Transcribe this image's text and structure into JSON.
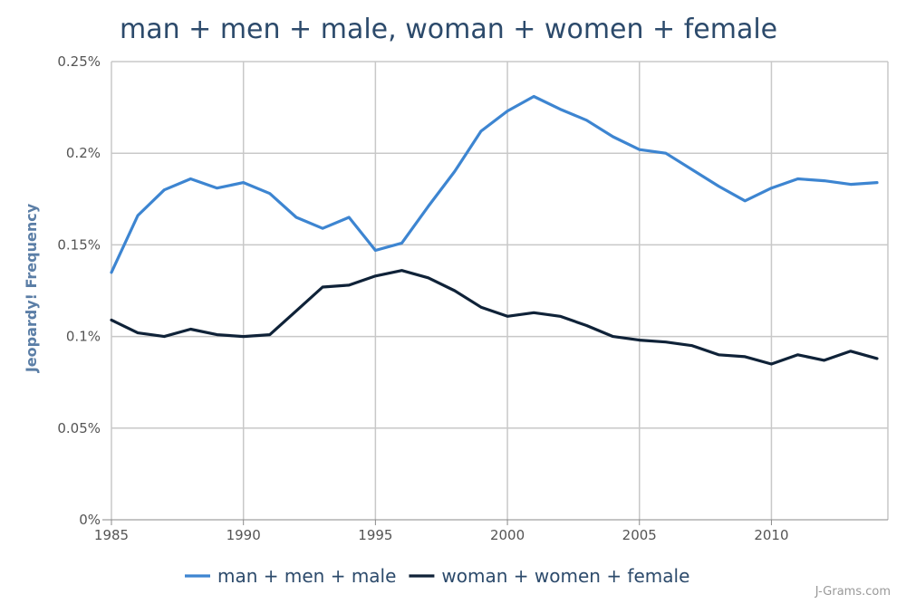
{
  "chart_data": {
    "type": "line",
    "title": "man + men + male, woman + women + female",
    "ylabel": "Jeopardy! Frequency",
    "xlabel": "",
    "xlim": [
      1985,
      2014
    ],
    "ylim": [
      0,
      0.25
    ],
    "grid": true,
    "legend_position": "bottom",
    "x_ticks": [
      1985,
      1990,
      1995,
      2000,
      2005,
      2010
    ],
    "x_tick_labels": [
      "1985",
      "1990",
      "1995",
      "2000",
      "2005",
      "2010"
    ],
    "y_ticks": [
      0,
      0.05,
      0.1,
      0.15,
      0.2,
      0.25
    ],
    "y_tick_labels": [
      "0%",
      "0.05%",
      "0.1%",
      "0.15%",
      "0.2%",
      "0.25%"
    ],
    "x": [
      1985,
      1986,
      1987,
      1988,
      1989,
      1990,
      1991,
      1992,
      1993,
      1994,
      1995,
      1996,
      1997,
      1998,
      1999,
      2000,
      2001,
      2002,
      2003,
      2004,
      2005,
      2006,
      2007,
      2008,
      2009,
      2010,
      2011,
      2012,
      2013,
      2014
    ],
    "series": [
      {
        "name": "man + men + male",
        "color": "#3d85d1",
        "values": [
          0.135,
          0.166,
          0.18,
          0.186,
          0.181,
          0.184,
          0.178,
          0.165,
          0.159,
          0.165,
          0.147,
          0.151,
          0.171,
          0.19,
          0.212,
          0.223,
          0.231,
          0.224,
          0.218,
          0.209,
          0.202,
          0.2,
          0.191,
          0.182,
          0.174,
          0.181,
          0.186,
          0.185,
          0.183,
          0.184
        ]
      },
      {
        "name": "woman + women + female",
        "color": "#0f2238",
        "values": [
          0.109,
          0.102,
          0.1,
          0.104,
          0.101,
          0.1,
          0.101,
          0.114,
          0.127,
          0.128,
          0.133,
          0.136,
          0.132,
          0.125,
          0.116,
          0.111,
          0.113,
          0.111,
          0.106,
          0.1,
          0.098,
          0.097,
          0.095,
          0.09,
          0.089,
          0.085,
          0.09,
          0.087,
          0.092,
          0.088
        ]
      }
    ]
  },
  "credit": "J-Grams.com"
}
